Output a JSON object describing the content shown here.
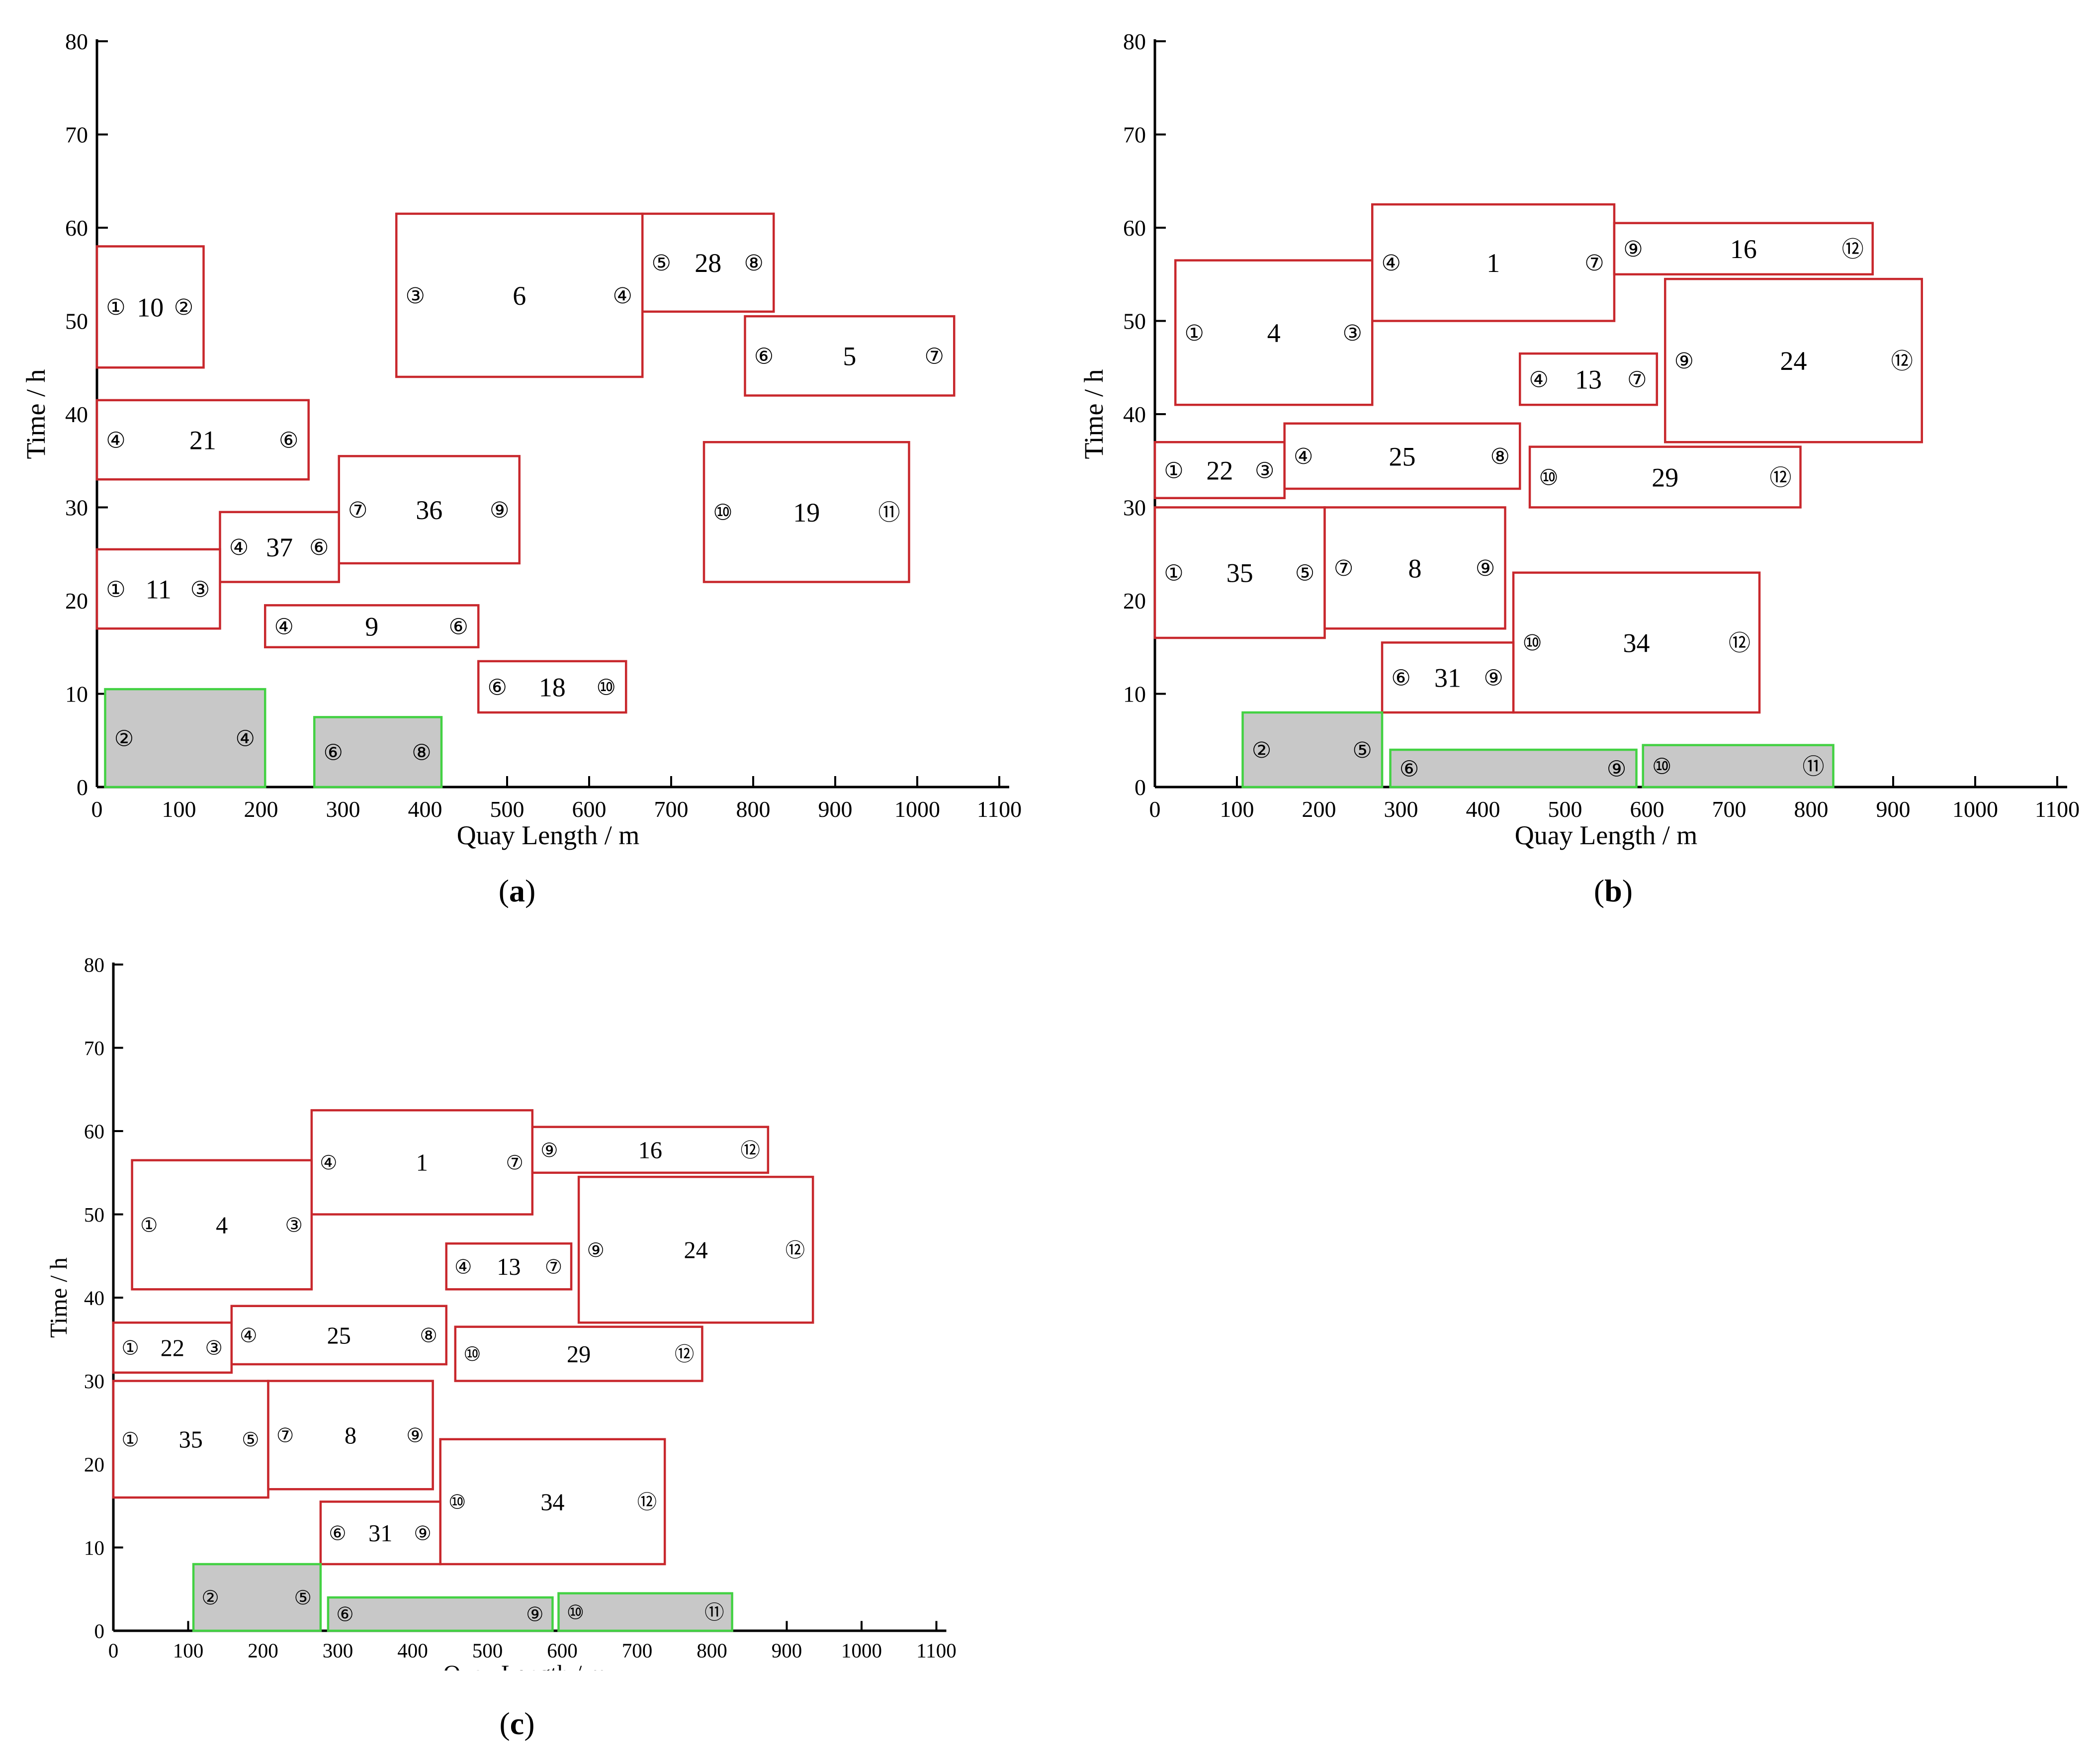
{
  "figure": {
    "panels": [
      {
        "id": "a",
        "label_open": "(",
        "label_letter": "a",
        "label_close": ")"
      },
      {
        "id": "b",
        "label_open": "(",
        "label_letter": "b",
        "label_close": ")"
      },
      {
        "id": "c",
        "label_open": "(",
        "label_letter": "c",
        "label_close": ")"
      }
    ]
  },
  "colors": {
    "red_box": "#c8282d",
    "green_box": "#43d143",
    "gray_fill": "#c8c8c8",
    "axis": "#000000"
  },
  "chart_data": [
    {
      "type": "gantt",
      "panel": "a",
      "title": "",
      "xlabel": "Quay Length / m",
      "ylabel": "Time / h",
      "xlim": [
        0,
        1100
      ],
      "ylim": [
        0,
        80
      ],
      "xticks": [
        0,
        100,
        200,
        300,
        400,
        500,
        600,
        700,
        800,
        900,
        1000,
        1100
      ],
      "yticks": [
        0,
        10,
        20,
        30,
        40,
        50,
        60,
        70,
        80
      ],
      "vessels": [
        {
          "id": "10",
          "x0": 0,
          "x1": 130,
          "y0": 45,
          "y1": 58,
          "left": "1",
          "right": "2",
          "state": "planned"
        },
        {
          "id": "6",
          "x0": 365,
          "x1": 665,
          "y0": 44,
          "y1": 61.5,
          "left": "3",
          "right": "4",
          "state": "planned"
        },
        {
          "id": "28",
          "x0": 665,
          "x1": 825,
          "y0": 51,
          "y1": 61.5,
          "left": "5",
          "right": "8",
          "state": "planned"
        },
        {
          "id": "5",
          "x0": 790,
          "x1": 1045,
          "y0": 42,
          "y1": 50.5,
          "left": "6",
          "right": "7",
          "state": "planned"
        },
        {
          "id": "21",
          "x0": 0,
          "x1": 258,
          "y0": 33,
          "y1": 41.5,
          "left": "4",
          "right": "6",
          "state": "planned"
        },
        {
          "id": "36",
          "x0": 295,
          "x1": 515,
          "y0": 24,
          "y1": 35.5,
          "left": "7",
          "right": "9",
          "state": "planned"
        },
        {
          "id": "37",
          "x0": 150,
          "x1": 295,
          "y0": 22,
          "y1": 29.5,
          "left": "4",
          "right": "6",
          "state": "planned"
        },
        {
          "id": "11",
          "x0": 0,
          "x1": 150,
          "y0": 17,
          "y1": 25.5,
          "left": "1",
          "right": "3",
          "state": "planned"
        },
        {
          "id": "19",
          "x0": 740,
          "x1": 990,
          "y0": 22,
          "y1": 37,
          "left": "10",
          "right": "11",
          "state": "planned"
        },
        {
          "id": "9",
          "x0": 205,
          "x1": 465,
          "y0": 15,
          "y1": 19.5,
          "left": "4",
          "right": "6",
          "state": "planned"
        },
        {
          "id": "18",
          "x0": 465,
          "x1": 645,
          "y0": 8,
          "y1": 13.5,
          "left": "6",
          "right": "10",
          "state": "planned"
        },
        {
          "id": "",
          "x0": 10,
          "x1": 205,
          "y0": 0,
          "y1": 10.5,
          "left": "2",
          "right": "4",
          "state": "berthed"
        },
        {
          "id": "",
          "x0": 265,
          "x1": 420,
          "y0": 0,
          "y1": 7.5,
          "left": "6",
          "right": "8",
          "state": "berthed"
        }
      ]
    },
    {
      "type": "gantt",
      "panel": "b",
      "title": "",
      "xlabel": "Quay Length / m",
      "ylabel": "Time / h",
      "xlim": [
        0,
        1100
      ],
      "ylim": [
        0,
        80
      ],
      "xticks": [
        0,
        100,
        200,
        300,
        400,
        500,
        600,
        700,
        800,
        900,
        1000,
        1100
      ],
      "yticks": [
        0,
        10,
        20,
        30,
        40,
        50,
        60,
        70,
        80
      ],
      "vessels": [
        {
          "id": "1",
          "x0": 265,
          "x1": 560,
          "y0": 50,
          "y1": 62.5,
          "left": "4",
          "right": "7",
          "state": "planned"
        },
        {
          "id": "16",
          "x0": 560,
          "x1": 875,
          "y0": 55,
          "y1": 60.5,
          "left": "9",
          "right": "12",
          "state": "planned"
        },
        {
          "id": "4",
          "x0": 25,
          "x1": 265,
          "y0": 41,
          "y1": 56.5,
          "left": "1",
          "right": "3",
          "state": "planned"
        },
        {
          "id": "24",
          "x0": 622,
          "x1": 935,
          "y0": 37,
          "y1": 54.5,
          "left": "9",
          "right": "12",
          "state": "planned"
        },
        {
          "id": "13",
          "x0": 445,
          "x1": 612,
          "y0": 41,
          "y1": 46.5,
          "left": "4",
          "right": "7",
          "state": "planned"
        },
        {
          "id": "22",
          "x0": 0,
          "x1": 158,
          "y0": 31,
          "y1": 37,
          "left": "1",
          "right": "3",
          "state": "planned"
        },
        {
          "id": "25",
          "x0": 158,
          "x1": 445,
          "y0": 32,
          "y1": 39,
          "left": "4",
          "right": "8",
          "state": "planned"
        },
        {
          "id": "29",
          "x0": 457,
          "x1": 787,
          "y0": 30,
          "y1": 36.5,
          "left": "10",
          "right": "12",
          "state": "planned"
        },
        {
          "id": "35",
          "x0": 0,
          "x1": 207,
          "y0": 16,
          "y1": 30,
          "left": "1",
          "right": "5",
          "state": "planned"
        },
        {
          "id": "8",
          "x0": 207,
          "x1": 427,
          "y0": 17,
          "y1": 30,
          "left": "7",
          "right": "9",
          "state": "planned"
        },
        {
          "id": "34",
          "x0": 437,
          "x1": 737,
          "y0": 8,
          "y1": 23,
          "left": "10",
          "right": "12",
          "state": "planned"
        },
        {
          "id": "31",
          "x0": 277,
          "x1": 437,
          "y0": 8,
          "y1": 15.5,
          "left": "6",
          "right": "9",
          "state": "planned"
        },
        {
          "id": "",
          "x0": 107,
          "x1": 277,
          "y0": 0,
          "y1": 8,
          "left": "2",
          "right": "5",
          "state": "berthed"
        },
        {
          "id": "",
          "x0": 287,
          "x1": 587,
          "y0": 0,
          "y1": 4,
          "left": "6",
          "right": "9",
          "state": "berthed"
        },
        {
          "id": "",
          "x0": 595,
          "x1": 827,
          "y0": 0,
          "y1": 4.5,
          "left": "10",
          "right": "11",
          "state": "berthed"
        }
      ]
    },
    {
      "type": "gantt",
      "panel": "c",
      "title": "",
      "xlabel": "Quay Length / m",
      "ylabel": "Time / h",
      "xlim": [
        0,
        1100
      ],
      "ylim": [
        0,
        80
      ],
      "xticks": [
        0,
        100,
        200,
        300,
        400,
        500,
        600,
        700,
        800,
        900,
        1000,
        1100
      ],
      "yticks": [
        0,
        10,
        20,
        30,
        40,
        50,
        60,
        70,
        80
      ],
      "vessels": [
        {
          "id": "1",
          "x0": 265,
          "x1": 560,
          "y0": 50,
          "y1": 62.5,
          "left": "4",
          "right": "7",
          "state": "planned"
        },
        {
          "id": "16",
          "x0": 560,
          "x1": 875,
          "y0": 55,
          "y1": 60.5,
          "left": "9",
          "right": "12",
          "state": "planned"
        },
        {
          "id": "4",
          "x0": 25,
          "x1": 265,
          "y0": 41,
          "y1": 56.5,
          "left": "1",
          "right": "3",
          "state": "planned"
        },
        {
          "id": "24",
          "x0": 622,
          "x1": 935,
          "y0": 37,
          "y1": 54.5,
          "left": "9",
          "right": "12",
          "state": "planned"
        },
        {
          "id": "13",
          "x0": 445,
          "x1": 612,
          "y0": 41,
          "y1": 46.5,
          "left": "4",
          "right": "7",
          "state": "planned"
        },
        {
          "id": "22",
          "x0": 0,
          "x1": 158,
          "y0": 31,
          "y1": 37,
          "left": "1",
          "right": "3",
          "state": "planned"
        },
        {
          "id": "25",
          "x0": 158,
          "x1": 445,
          "y0": 32,
          "y1": 39,
          "left": "4",
          "right": "8",
          "state": "planned"
        },
        {
          "id": "29",
          "x0": 457,
          "x1": 787,
          "y0": 30,
          "y1": 36.5,
          "left": "10",
          "right": "12",
          "state": "planned"
        },
        {
          "id": "35",
          "x0": 0,
          "x1": 207,
          "y0": 16,
          "y1": 30,
          "left": "1",
          "right": "5",
          "state": "planned"
        },
        {
          "id": "8",
          "x0": 207,
          "x1": 427,
          "y0": 17,
          "y1": 30,
          "left": "7",
          "right": "9",
          "state": "planned"
        },
        {
          "id": "34",
          "x0": 437,
          "x1": 737,
          "y0": 8,
          "y1": 23,
          "left": "10",
          "right": "12",
          "state": "planned"
        },
        {
          "id": "31",
          "x0": 277,
          "x1": 437,
          "y0": 8,
          "y1": 15.5,
          "left": "6",
          "right": "9",
          "state": "planned"
        },
        {
          "id": "",
          "x0": 107,
          "x1": 277,
          "y0": 0,
          "y1": 8,
          "left": "2",
          "right": "5",
          "state": "berthed"
        },
        {
          "id": "",
          "x0": 287,
          "x1": 587,
          "y0": 0,
          "y1": 4,
          "left": "6",
          "right": "9",
          "state": "berthed"
        },
        {
          "id": "",
          "x0": 595,
          "x1": 827,
          "y0": 0,
          "y1": 4.5,
          "left": "10",
          "right": "11",
          "state": "berthed"
        }
      ]
    }
  ]
}
